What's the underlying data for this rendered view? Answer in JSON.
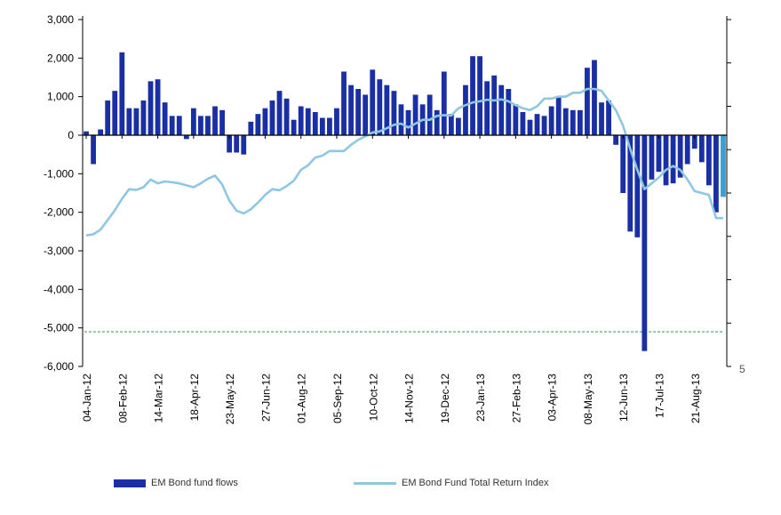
{
  "colors": {
    "flows": "#1a2fa3",
    "latest_flow": "#3b9fd6",
    "index_line": "#8fc7e3",
    "threshold": "#2e9e4f",
    "axis": "#000000"
  },
  "chart_data": {
    "type": "bar",
    "title": "",
    "xlabel": "",
    "ylabel": "",
    "ylim": [
      -6000,
      3000
    ],
    "yticks": [
      "3,000",
      "2,000",
      "1,000",
      "0",
      "-1,000",
      "-2,000",
      "-3,000",
      "-4,000",
      "-5,000",
      "-6,000"
    ],
    "ytick_values": [
      3000,
      2000,
      1000,
      0,
      -1000,
      -2000,
      -3000,
      -4000,
      -5000,
      -6000
    ],
    "xtick_labels": [
      "04-Jan-12",
      "08-Feb-12",
      "14-Mar-12",
      "18-Apr-12",
      "23-May-12",
      "27-Jun-12",
      "01-Aug-12",
      "05-Sep-12",
      "10-Oct-12",
      "14-Nov-12",
      "19-Dec-12",
      "23-Jan-13",
      "27-Feb-13",
      "03-Apr-13",
      "08-May-13",
      "12-Jun-13",
      "17-Jul-13",
      "21-Aug-13"
    ],
    "xtick_indices": [
      0,
      5,
      10,
      15,
      20,
      25,
      30,
      35,
      40,
      45,
      50,
      55,
      60,
      65,
      70,
      75,
      80,
      85
    ],
    "right_axis_label": "5",
    "threshold": -5100,
    "series": [
      {
        "name": "EM Bond fund flows",
        "kind": "bar",
        "values": [
          100,
          -750,
          150,
          900,
          1150,
          2150,
          700,
          700,
          900,
          1400,
          1450,
          850,
          500,
          500,
          -100,
          700,
          500,
          500,
          750,
          650,
          -450,
          -450,
          -500,
          350,
          550,
          700,
          900,
          1150,
          950,
          400,
          750,
          700,
          600,
          450,
          450,
          700,
          1650,
          1300,
          1200,
          1050,
          1700,
          1450,
          1300,
          1150,
          800,
          650,
          1050,
          800,
          1050,
          650,
          1650,
          550,
          450,
          1300,
          2050,
          2050,
          1400,
          1550,
          1300,
          1200,
          800,
          600,
          400,
          550,
          500,
          750,
          1000,
          700,
          650,
          650,
          1750,
          1950,
          850,
          900,
          -250,
          -1500,
          -2500,
          -2650,
          -5600,
          -1150,
          -950,
          -1300,
          -1250,
          -1100,
          -750,
          -350,
          -700,
          -1300,
          -2000,
          -1600
        ]
      },
      {
        "name": "EM Bond Fund Total Return Index",
        "kind": "line",
        "values": [
          -2600,
          -2570,
          -2450,
          -2200,
          -1950,
          -1650,
          -1400,
          -1420,
          -1350,
          -1150,
          -1250,
          -1200,
          -1220,
          -1250,
          -1300,
          -1350,
          -1250,
          -1130,
          -1050,
          -1280,
          -1700,
          -1960,
          -2030,
          -1920,
          -1750,
          -1550,
          -1400,
          -1430,
          -1320,
          -1180,
          -900,
          -780,
          -580,
          -530,
          -410,
          -410,
          -410,
          -250,
          -120,
          -30,
          70,
          100,
          180,
          270,
          300,
          200,
          300,
          400,
          400,
          500,
          520,
          510,
          700,
          780,
          850,
          880,
          920,
          900,
          930,
          880,
          780,
          700,
          650,
          750,
          950,
          950,
          1000,
          1000,
          1100,
          1100,
          1200,
          1200,
          1150,
          900,
          650,
          250,
          -350,
          -900,
          -1400,
          -1250,
          -1100,
          -900,
          -800,
          -900,
          -1150,
          -1450,
          -1500,
          -1550,
          -2150,
          -2150
        ]
      }
    ]
  },
  "legend": {
    "flows_label": "EM Bond fund flows",
    "index_label": "EM Bond Fund Total Return Index"
  }
}
